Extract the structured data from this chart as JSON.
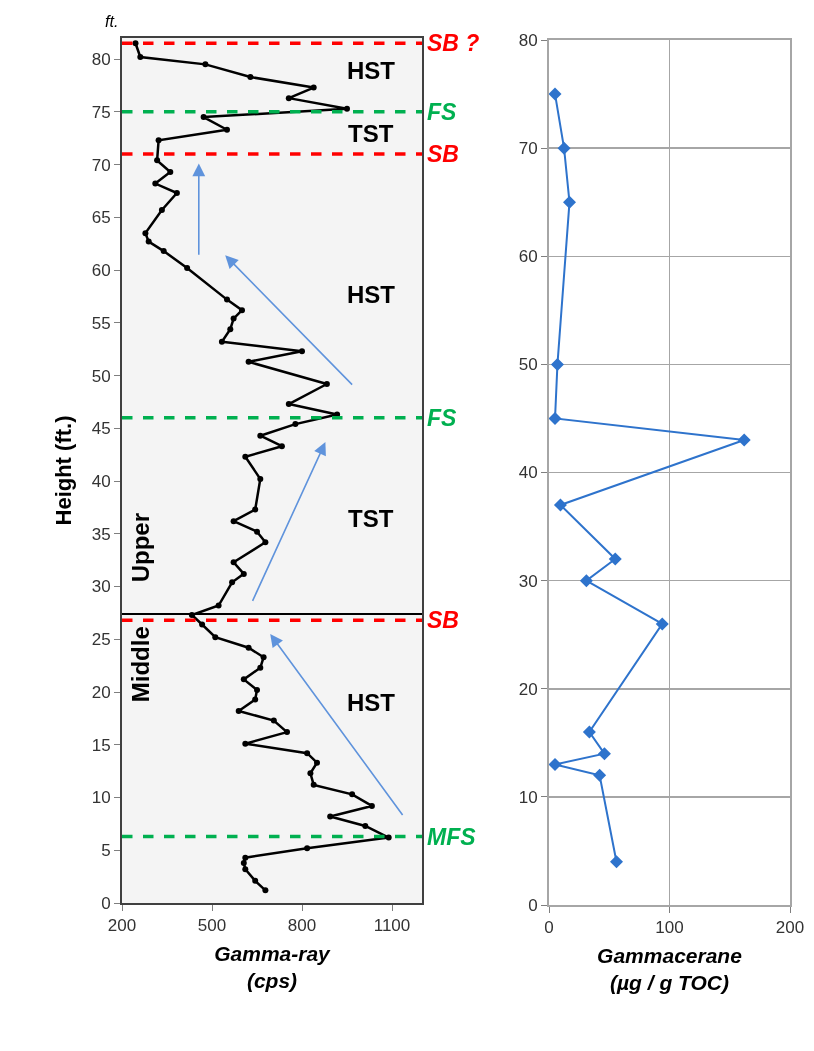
{
  "chart_data": [
    {
      "type": "line",
      "xlabel": "Gamma-ray\n(cps)",
      "ylabel": "Height (ft.)",
      "xlim": [
        200,
        1200
      ],
      "xticks": [
        200,
        500,
        800,
        1100
      ],
      "ylim": [
        0,
        82
      ],
      "yticks": [
        0,
        5,
        10,
        15,
        20,
        25,
        30,
        35,
        40,
        45,
        50,
        55,
        60,
        65,
        70,
        75,
        80
      ],
      "grid": false,
      "marker": "circle",
      "line_style": "solid",
      "series": [
        {
          "color": "#000000",
          "x": [
            678,
            644,
            611,
            606,
            611,
            817,
            1089,
            1011,
            894,
            1033,
            967,
            839,
            828,
            850,
            817,
            611,
            750,
            706,
            589,
            644,
            650,
            606,
            661,
            672,
            622,
            511,
            467,
            433,
            522,
            567,
            606,
            572,
            678,
            650,
            572,
            644,
            661,
            611,
            733,
            661,
            778,
            917,
            756,
            883,
            622,
            800,
            533,
            561,
            572,
            600,
            550,
            417,
            339,
            289,
            278,
            333,
            383,
            311,
            361,
            317,
            322,
            550,
            472,
            950,
            756,
            839,
            628,
            478,
            261,
            245
          ],
          "values": [
            1.2,
            2.1,
            3.2,
            3.8,
            4.3,
            5.2,
            6.2,
            7.3,
            8.2,
            9.2,
            10.3,
            11.2,
            12.3,
            13.3,
            14.2,
            15.1,
            16.2,
            17.3,
            18.2,
            19.3,
            20.2,
            21.2,
            22.3,
            23.3,
            24.2,
            25.2,
            26.4,
            27.3,
            28.2,
            30.4,
            31.2,
            32.3,
            34.2,
            35.2,
            36.2,
            37.3,
            40.2,
            42.3,
            43.3,
            44.3,
            45.4,
            46.3,
            47.3,
            49.2,
            51.3,
            52.3,
            53.2,
            54.4,
            55.4,
            56.2,
            57.2,
            60.2,
            61.8,
            62.7,
            63.5,
            65.7,
            67.3,
            68.2,
            69.3,
            70.4,
            72.3,
            73.3,
            74.5,
            75.3,
            76.3,
            77.3,
            78.3,
            79.5,
            80.2,
            81.5
          ]
        }
      ],
      "ref_lines": [
        {
          "axis": "y",
          "value": 81.5,
          "label": "SB ?",
          "color": "#ff0000",
          "line_style": "dashed"
        },
        {
          "axis": "y",
          "value": 75,
          "label": "FS",
          "color": "#00b050",
          "line_style": "dashed"
        },
        {
          "axis": "y",
          "value": 71,
          "label": "SB",
          "color": "#ff0000",
          "line_style": "dashed"
        },
        {
          "axis": "y",
          "value": 46,
          "label": "FS",
          "color": "#00b050",
          "line_style": "dashed"
        },
        {
          "axis": "y",
          "value": 26.8,
          "label": "SB",
          "color": "#ff0000",
          "line_style": "dashed"
        },
        {
          "axis": "y",
          "value": 6.3,
          "label": "MFS",
          "color": "#00b050",
          "line_style": "dashed"
        },
        {
          "axis": "y",
          "value": 27.4,
          "color": "#000000",
          "line_style": "solid"
        }
      ],
      "annotations": [
        "ft.",
        "HST",
        "TST",
        "HST",
        "TST",
        "HST",
        "Upper",
        "Middle"
      ]
    },
    {
      "type": "line",
      "xlabel": "Gammacerane\n(µg / g TOC)",
      "xlim": [
        0,
        200
      ],
      "xticks": [
        0,
        100,
        200
      ],
      "ylim": [
        0,
        80
      ],
      "yticks": [
        0,
        10,
        20,
        30,
        40,
        50,
        60,
        70,
        80
      ],
      "grid": true,
      "marker": "diamond",
      "line_style": "solid",
      "series": [
        {
          "color": "#2e73cc",
          "x": [
            5,
            12.5,
            17,
            7,
            5,
            162,
            9.5,
            55,
            31,
            94,
            33.5,
            46,
            5,
            42,
            56
          ],
          "values": [
            75,
            70,
            65,
            50,
            45,
            43,
            37,
            32,
            30,
            26,
            16,
            14,
            13,
            12,
            4
          ]
        }
      ]
    }
  ]
}
